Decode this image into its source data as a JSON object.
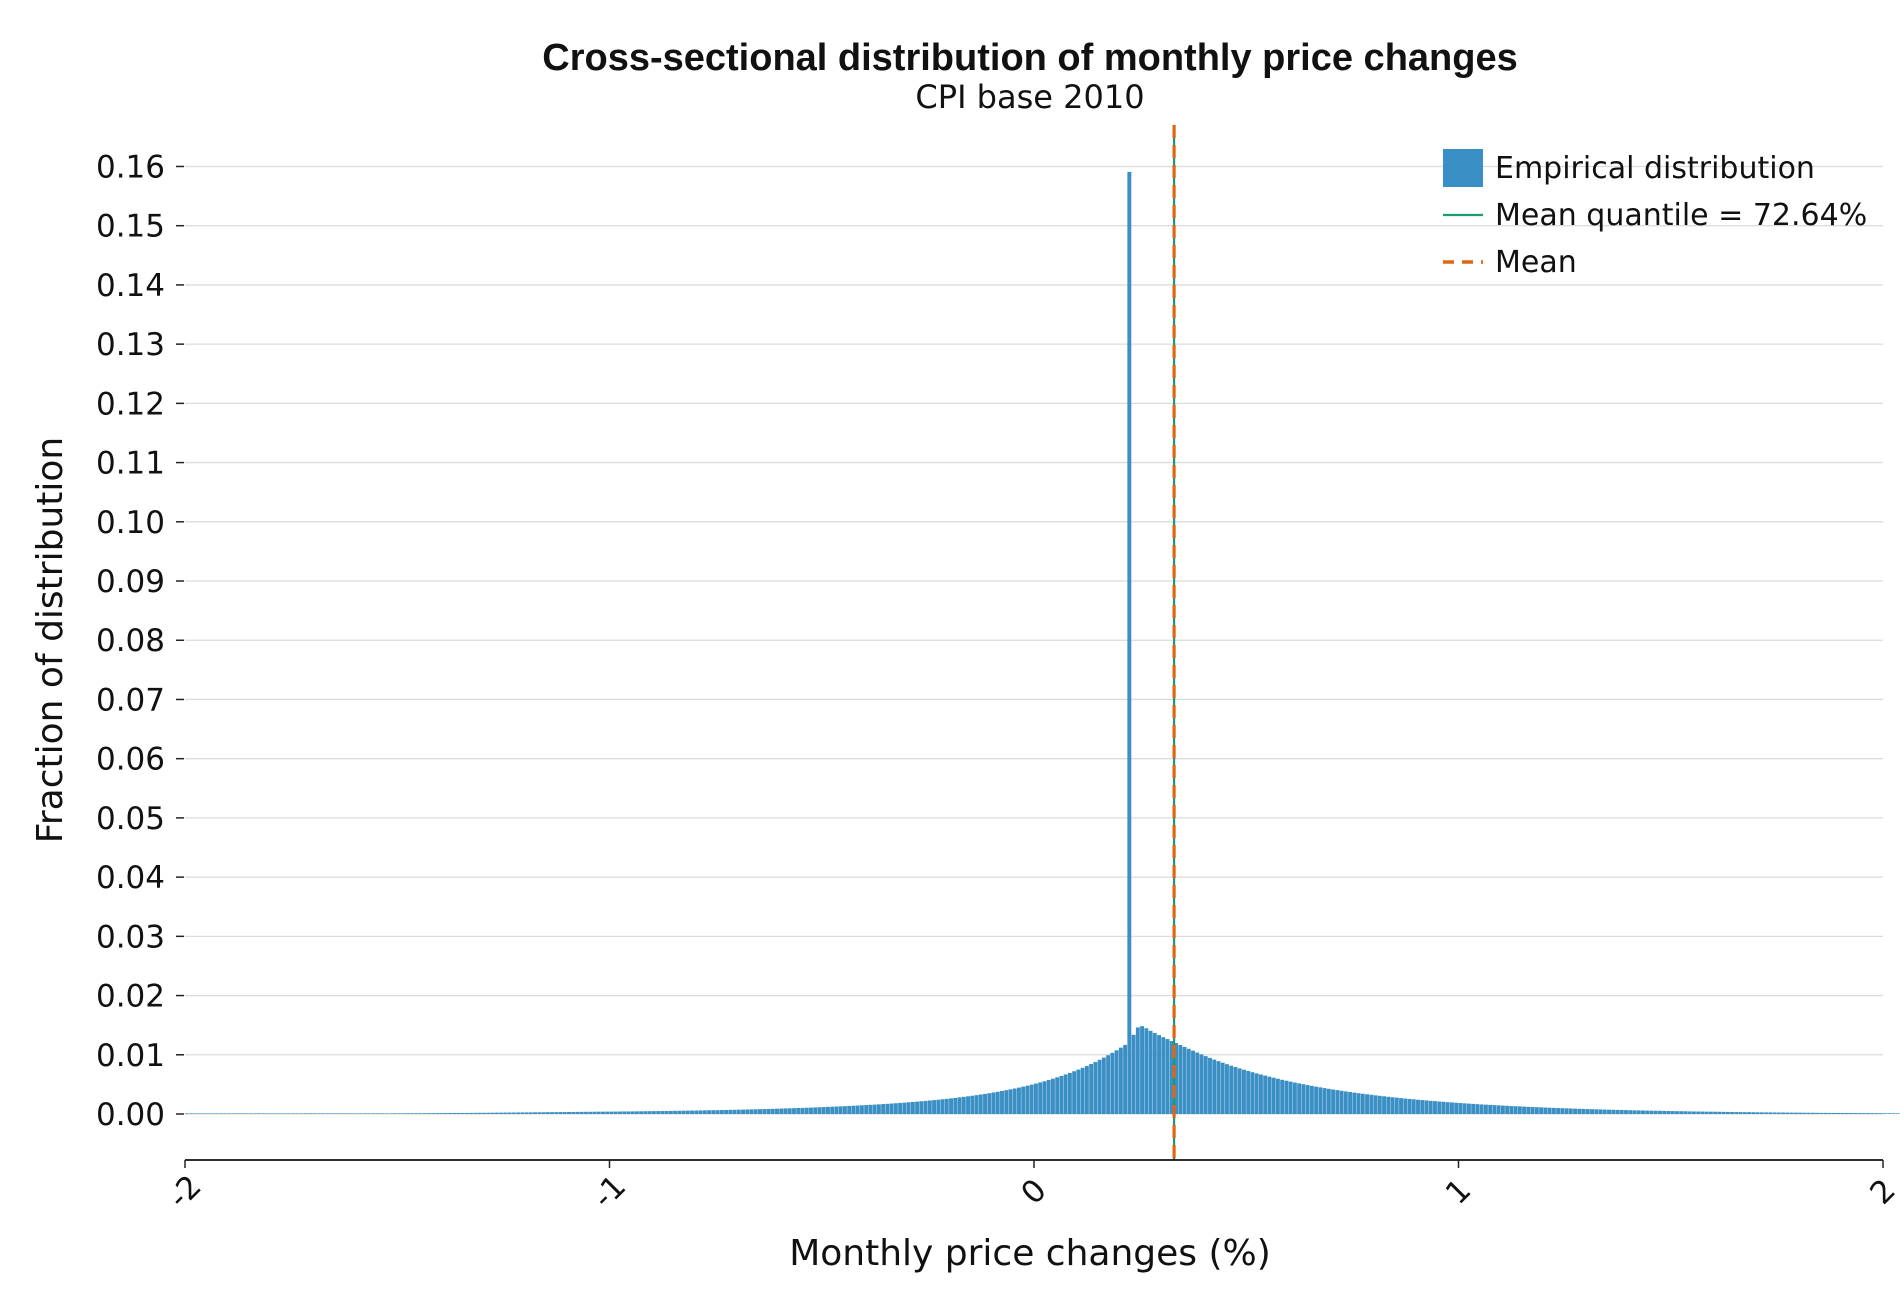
{
  "chart_data": {
    "type": "bar",
    "title": "Cross-sectional distribution of monthly price changes",
    "subtitle": "CPI base 2010",
    "xlabel": "Monthly price changes (%)",
    "ylabel": "Fraction of distribution",
    "xlim": [
      -2,
      2
    ],
    "ylim": [
      -0.008,
      0.162
    ],
    "x_ticks": [
      -2,
      -1,
      0,
      1,
      2
    ],
    "x_tick_labels": [
      "-2",
      "-1",
      "0",
      "1",
      "2"
    ],
    "x_tick_rotation": -45,
    "y_ticks": [
      0.0,
      0.01,
      0.02,
      0.03,
      0.04,
      0.05,
      0.06,
      0.07,
      0.08,
      0.09,
      0.1,
      0.11,
      0.12,
      0.13,
      0.14,
      0.15,
      0.16
    ],
    "y_tick_labels": [
      "0.00",
      "0.01",
      "0.02",
      "0.03",
      "0.04",
      "0.05",
      "0.06",
      "0.07",
      "0.08",
      "0.09",
      "0.10",
      "0.11",
      "0.12",
      "0.13",
      "0.14",
      "0.15",
      "0.16"
    ],
    "grid": "horizontal",
    "legend_position": "top-right",
    "histogram": {
      "name": "Empirical distribution",
      "color": "#3a8fc4",
      "bin_width": 0.01,
      "x_start": -2.0,
      "values": [
        5e-05,
        5e-05,
        5e-05,
        5e-05,
        5e-05,
        5e-05,
        5e-05,
        5e-05,
        5e-05,
        5e-05,
        5e-05,
        5e-05,
        5e-05,
        5e-05,
        5e-05,
        5e-05,
        5e-05,
        6e-05,
        6e-05,
        6e-05,
        6e-05,
        6e-05,
        6e-05,
        6e-05,
        6e-05,
        6e-05,
        6e-05,
        6e-05,
        6e-05,
        6e-05,
        6e-05,
        7e-05,
        7e-05,
        7e-05,
        7e-05,
        7e-05,
        7e-05,
        8e-05,
        8e-05,
        8e-05,
        8e-05,
        8e-05,
        9e-05,
        9e-05,
        9e-05,
        0.0001,
        0.0001,
        0.0001,
        0.0001,
        0.00011,
        0.00011,
        0.00011,
        0.00012,
        0.00012,
        0.00013,
        0.00013,
        0.00013,
        0.00014,
        0.00014,
        0.00015,
        0.00015,
        0.00016,
        0.00016,
        0.00017,
        0.00017,
        0.00018,
        0.00018,
        0.00019,
        0.0002,
        0.0002,
        0.00021,
        0.00021,
        0.00022,
        0.00023,
        0.00023,
        0.00024,
        0.00025,
        0.00025,
        0.00026,
        0.00027,
        0.00027,
        0.00028,
        0.00029,
        0.00029,
        0.0003,
        0.00031,
        0.00031,
        0.00032,
        0.00033,
        0.00033,
        0.00034,
        0.00035,
        0.00035,
        0.00036,
        0.00037,
        0.00037,
        0.00038,
        0.00039,
        0.00039,
        0.0004,
        0.0004,
        0.00041,
        0.00042,
        0.00043,
        0.00043,
        0.00044,
        0.00045,
        0.00046,
        0.00047,
        0.00048,
        0.00048,
        0.00049,
        0.0005,
        0.00051,
        0.00052,
        0.00053,
        0.00054,
        0.00056,
        0.00057,
        0.00058,
        0.00059,
        0.0006,
        0.00061,
        0.00063,
        0.00064,
        0.00065,
        0.00067,
        0.00068,
        0.0007,
        0.00071,
        0.00073,
        0.00074,
        0.00076,
        0.00078,
        0.0008,
        0.00082,
        0.00083,
        0.00085,
        0.00087,
        0.00089,
        0.00092,
        0.00094,
        0.00096,
        0.00098,
        0.00101,
        0.00103,
        0.00106,
        0.00108,
        0.00111,
        0.00114,
        0.00117,
        0.0012,
        0.00123,
        0.00126,
        0.00129,
        0.00132,
        0.00136,
        0.00139,
        0.00143,
        0.00147,
        0.00151,
        0.00155,
        0.00159,
        0.00163,
        0.00168,
        0.00172,
        0.00177,
        0.00182,
        0.00187,
        0.00192,
        0.00198,
        0.00203,
        0.00209,
        0.00215,
        0.00221,
        0.00228,
        0.00234,
        0.00241,
        0.00249,
        0.00256,
        0.00264,
        0.00272,
        0.00281,
        0.0029,
        0.00299,
        0.00308,
        0.00318,
        0.00329,
        0.0034,
        0.00351,
        0.00363,
        0.00375,
        0.00388,
        0.00402,
        0.00416,
        0.0043,
        0.00446,
        0.00462,
        0.00478,
        0.00496,
        0.00514,
        0.00533,
        0.00553,
        0.00574,
        0.00596,
        0.00619,
        0.00643,
        0.00668,
        0.00694,
        0.00722,
        0.0075,
        0.0078,
        0.00812,
        0.00845,
        0.00879,
        0.00915,
        0.00953,
        0.00992,
        0.01033,
        0.01076,
        0.0112,
        0.01166,
        0.15909,
        0.01337,
        0.01462,
        0.01483,
        0.01448,
        0.01405,
        0.01367,
        0.01332,
        0.01298,
        0.01265,
        0.01232,
        0.01199,
        0.01166,
        0.01133,
        0.01101,
        0.01069,
        0.01038,
        0.01007,
        0.00977,
        0.00947,
        0.00919,
        0.00892,
        0.00866,
        0.00841,
        0.00816,
        0.00793,
        0.0077,
        0.00748,
        0.00727,
        0.00706,
        0.00686,
        0.00667,
        0.00648,
        0.0063,
        0.00612,
        0.00595,
        0.00578,
        0.00562,
        0.00547,
        0.00531,
        0.00517,
        0.00503,
        0.00489,
        0.00475,
        0.00462,
        0.0045,
        0.00437,
        0.00425,
        0.00414,
        0.00403,
        0.00392,
        0.00381,
        0.00371,
        0.00361,
        0.00351,
        0.00342,
        0.00333,
        0.00324,
        0.00315,
        0.00307,
        0.00299,
        0.00291,
        0.00283,
        0.00276,
        0.00268,
        0.00261,
        0.00254,
        0.00248,
        0.00241,
        0.00235,
        0.00229,
        0.00223,
        0.00217,
        0.00211,
        0.00206,
        0.002,
        0.00195,
        0.0019,
        0.00185,
        0.0018,
        0.00175,
        0.00171,
        0.00166,
        0.00162,
        0.00158,
        0.00154,
        0.0015,
        0.00146,
        0.00142,
        0.00138,
        0.00134,
        0.00131,
        0.00128,
        0.00124,
        0.00121,
        0.00118,
        0.00115,
        0.00112,
        0.00109,
        0.00106,
        0.00103,
        0.001,
        0.00098,
        0.00095,
        0.00093,
        0.0009,
        0.00088,
        0.00086,
        0.00083,
        0.00081,
        0.00079,
        0.00077,
        0.00075,
        0.00073,
        0.00071,
        0.00069,
        0.00068,
        0.00066,
        0.00064,
        0.00062,
        0.00061,
        0.00059,
        0.00058,
        0.00056,
        0.00055,
        0.00053,
        0.00052,
        0.00051,
        0.00049,
        0.00048,
        0.00047,
        0.00046,
        0.00044,
        0.00043,
        0.00042,
        0.00041,
        0.0004,
        0.00039,
        0.00038,
        0.00037,
        0.00036,
        0.00035,
        0.00034,
        0.00033,
        0.00032,
        0.00031,
        0.00031,
        0.0003,
        0.00029,
        0.00028,
        0.00027,
        0.00027,
        0.00026,
        0.00025,
        0.00025,
        0.00024,
        0.00023,
        0.00023,
        0.00022,
        0.00022,
        0.00021,
        0.00021,
        0.0002,
        0.00019,
        0.00019,
        0.00018,
        0.00018,
        0.00018,
        0.00017,
        0.00017,
        0.00016,
        0.00016,
        0.00015,
        0.00015,
        0.00015,
        0.00014,
        0.00014,
        0.00013,
        0.00013,
        0.00013,
        0.00012,
        0.00012,
        0.00012,
        0.00011,
        0.00011,
        0.00011,
        0.00011,
        0.0001,
        0.0001,
        0.0001,
        0.0001,
        9e-05,
        9e-05,
        9e-05,
        9e-05,
        8e-05,
        8e-05,
        8e-05,
        8e-05,
        8e-05,
        7e-05,
        7e-05,
        7e-05,
        7e-05,
        7e-05,
        6e-05,
        6e-05,
        6e-05,
        6e-05,
        6e-05,
        6e-05,
        6e-05,
        5e-05,
        5e-05,
        5e-05,
        5e-05,
        5e-05
      ]
    },
    "vertical_lines": [
      {
        "name": "Mean quantile = 72.64%",
        "x": 0.33,
        "color": "#1a9b73",
        "style": "solid"
      },
      {
        "name": "Mean",
        "x": 0.33,
        "color": "#e06614",
        "style": "dashed"
      }
    ],
    "legend": [
      {
        "label": "Empirical distribution",
        "kind": "patch",
        "color": "#3a8fc4"
      },
      {
        "label": "Mean quantile = 72.64%",
        "kind": "line",
        "color": "#1a9b73"
      },
      {
        "label": "Mean",
        "kind": "dashed",
        "color": "#e06614"
      }
    ]
  }
}
